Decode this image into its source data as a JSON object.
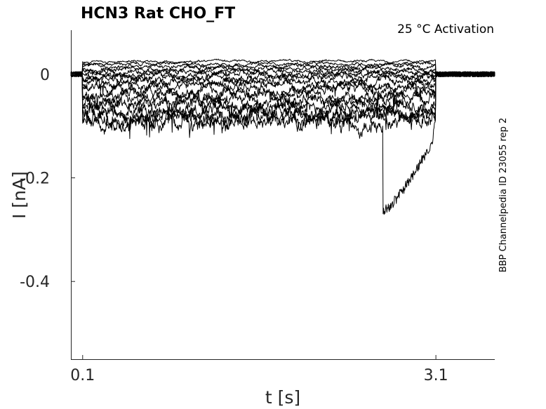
{
  "chart_data": {
    "type": "line",
    "title": "HCN3  Rat  CHO_FT",
    "annotation": "25 °C  Activation",
    "side_label": "BBP Channelpedia ID 23055 rep 2",
    "xlabel": "t [s]",
    "ylabel": "I [nA]",
    "xlim": [
      0.0,
      3.6
    ],
    "ylim": [
      -0.55,
      0.085
    ],
    "x_ticks": [
      0.1,
      3.1
    ],
    "x_tick_labels": [
      "0.1",
      "3.1"
    ],
    "y_ticks": [
      0,
      -0.2,
      -0.4
    ],
    "y_tick_labels": [
      "0",
      "-0.2",
      "-0.4"
    ],
    "grid": false,
    "legend": "none",
    "line_color": "#000000",
    "protocol": {
      "pulse_start": 0.1,
      "pulse_end": 3.1,
      "holding_current": 0.0
    },
    "sweep_levels_during_pulse": [
      0.025,
      0.02,
      0.015,
      0.01,
      0.005,
      0.0,
      -0.005,
      -0.012,
      -0.02,
      -0.03,
      -0.04,
      -0.05,
      -0.06,
      -0.07,
      -0.078,
      -0.085,
      -0.095
    ],
    "deepest_sweep_noise_extreme": {
      "t": 2.72,
      "i": -0.265
    }
  }
}
